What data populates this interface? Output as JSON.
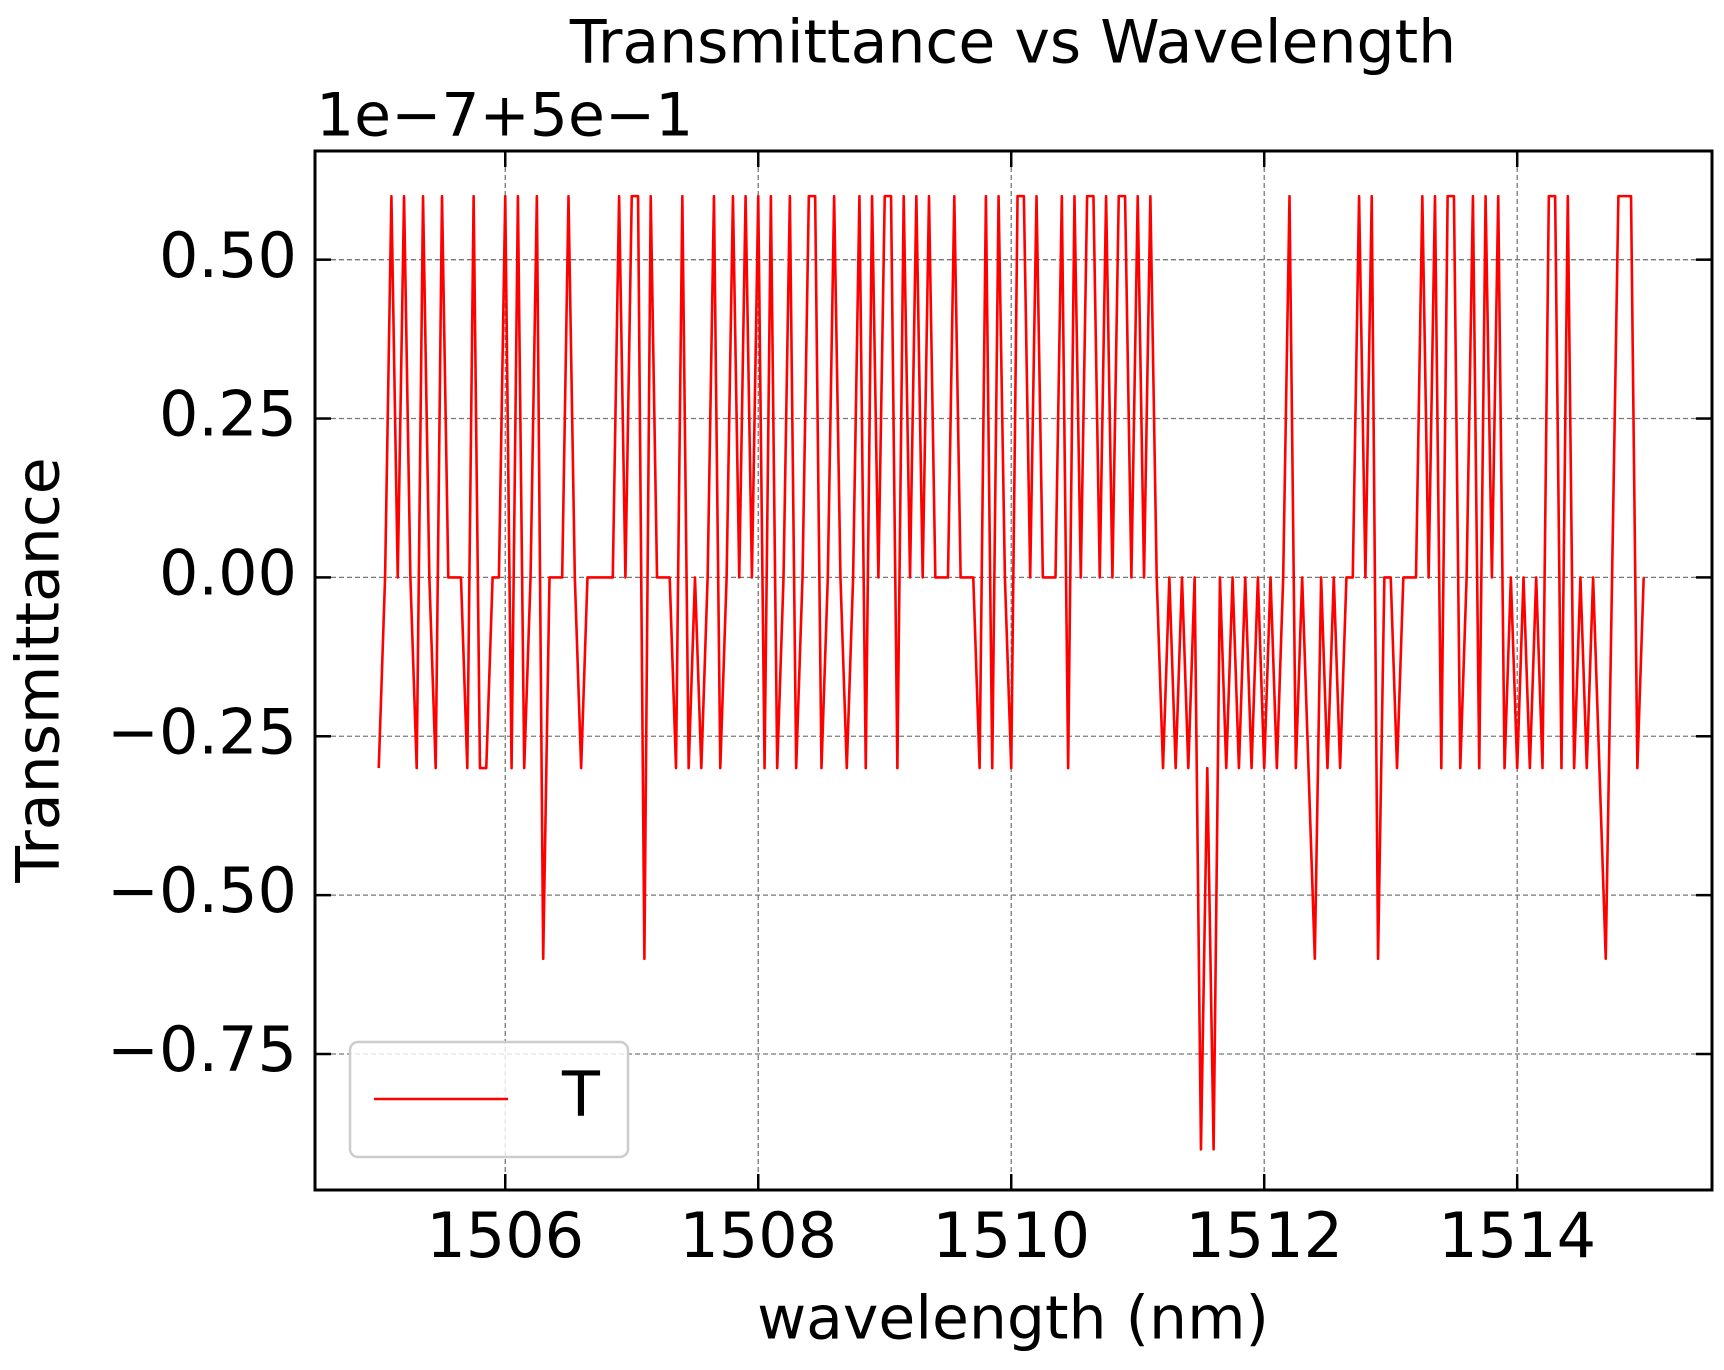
{
  "chart_data": {
    "type": "line",
    "title": "Transmittance vs Wavelength",
    "y_offset_label": "1e−7+5e−1",
    "xlabel": "wavelength (nm)",
    "ylabel": "Transmittance",
    "x": [
      1505,
      1505.05,
      1505.1,
      1505.15,
      1505.2,
      1505.25,
      1505.3,
      1505.35,
      1505.4,
      1505.45,
      1505.5,
      1505.55,
      1505.6,
      1505.65,
      1505.7,
      1505.75,
      1505.8,
      1505.85,
      1505.9,
      1505.95,
      1506,
      1506.05,
      1506.1,
      1506.15,
      1506.2,
      1506.25,
      1506.3,
      1506.35,
      1506.4,
      1506.45,
      1506.5,
      1506.55,
      1506.6,
      1506.65,
      1506.7,
      1506.75,
      1506.8,
      1506.85,
      1506.9,
      1506.95,
      1507,
      1507.05,
      1507.1,
      1507.15,
      1507.2,
      1507.25,
      1507.3,
      1507.35,
      1507.4,
      1507.45,
      1507.5,
      1507.55,
      1507.6,
      1507.65,
      1507.7,
      1507.75,
      1507.8,
      1507.85,
      1507.9,
      1507.95,
      1508,
      1508.05,
      1508.1,
      1508.15,
      1508.2,
      1508.25,
      1508.3,
      1508.35,
      1508.4,
      1508.45,
      1508.5,
      1508.55,
      1508.6,
      1508.65,
      1508.7,
      1508.75,
      1508.8,
      1508.85,
      1508.9,
      1508.95,
      1509,
      1509.05,
      1509.1,
      1509.15,
      1509.2,
      1509.25,
      1509.3,
      1509.35,
      1509.4,
      1509.45,
      1509.5,
      1509.55,
      1509.6,
      1509.65,
      1509.7,
      1509.75,
      1509.8,
      1509.85,
      1509.9,
      1509.95,
      1510,
      1510.05,
      1510.1,
      1510.15,
      1510.2,
      1510.25,
      1510.3,
      1510.35,
      1510.4,
      1510.45,
      1510.5,
      1510.55,
      1510.6,
      1510.65,
      1510.7,
      1510.75,
      1510.8,
      1510.85,
      1510.9,
      1510.95,
      1511,
      1511.05,
      1511.1,
      1511.15,
      1511.2,
      1511.25,
      1511.3,
      1511.35,
      1511.4,
      1511.45,
      1511.5,
      1511.55,
      1511.6,
      1511.65,
      1511.7,
      1511.75,
      1511.8,
      1511.85,
      1511.9,
      1511.95,
      1512,
      1512.05,
      1512.1,
      1512.15,
      1512.2,
      1512.25,
      1512.3,
      1512.35,
      1512.4,
      1512.45,
      1512.5,
      1512.55,
      1512.6,
      1512.65,
      1512.7,
      1512.75,
      1512.8,
      1512.85,
      1512.9,
      1512.95,
      1513,
      1513.05,
      1513.1,
      1513.15,
      1513.2,
      1513.25,
      1513.3,
      1513.35,
      1513.4,
      1513.45,
      1513.5,
      1513.55,
      1513.6,
      1513.65,
      1513.7,
      1513.75,
      1513.8,
      1513.85,
      1513.9,
      1513.95,
      1514,
      1514.05,
      1514.1,
      1514.15,
      1514.2,
      1514.25,
      1514.3,
      1514.35,
      1514.4,
      1514.45,
      1514.5,
      1514.55,
      1514.6,
      1514.65,
      1514.7,
      1514.75,
      1514.8,
      1514.85,
      1514.9,
      1514.95,
      1515
    ],
    "series": [
      {
        "name": "T",
        "color": "#ff0000",
        "values": [
          -0.3,
          0,
          0.6,
          0,
          0.6,
          0,
          -0.3,
          0.6,
          0,
          -0.3,
          0.6,
          0,
          0,
          0,
          -0.3,
          0.6,
          -0.3,
          -0.3,
          0,
          0,
          0.6,
          -0.3,
          0.6,
          -0.3,
          0,
          0.6,
          -0.6,
          0,
          0,
          0,
          0.6,
          0,
          -0.3,
          0,
          0,
          0,
          0,
          0,
          0.6,
          0,
          0.6,
          0.6,
          -0.6,
          0.6,
          0,
          0,
          0,
          -0.3,
          0.6,
          -0.3,
          0,
          -0.3,
          0,
          0.6,
          -0.3,
          0,
          0.6,
          0,
          0.6,
          0,
          0.6,
          -0.3,
          0.6,
          -0.3,
          0,
          0.6,
          -0.3,
          0,
          0.6,
          0.6,
          -0.3,
          0,
          0.6,
          0,
          -0.3,
          0,
          0.6,
          -0.3,
          0.6,
          0,
          0.6,
          0.6,
          -0.3,
          0.6,
          0,
          0.6,
          0,
          0.6,
          0,
          0,
          0,
          0.6,
          0,
          0,
          0,
          -0.3,
          0.6,
          -0.3,
          0.6,
          0,
          -0.3,
          0.6,
          0.6,
          0,
          0.6,
          0,
          0,
          0,
          0.6,
          -0.3,
          0.6,
          0,
          0.6,
          0.6,
          0,
          0.6,
          0,
          0.6,
          0.6,
          0,
          0.6,
          0,
          0.6,
          0,
          -0.3,
          0,
          -0.3,
          0,
          -0.3,
          0,
          -0.9,
          -0.3,
          -0.9,
          0,
          -0.3,
          0,
          -0.3,
          0,
          -0.3,
          0,
          -0.3,
          0,
          -0.3,
          0,
          0.6,
          -0.3,
          0,
          -0.3,
          -0.6,
          0,
          -0.3,
          0,
          -0.3,
          0,
          0,
          0.6,
          0,
          0.6,
          -0.6,
          0,
          0,
          -0.3,
          0,
          0,
          0,
          0.6,
          0,
          0.6,
          -0.3,
          0.6,
          0.6,
          -0.3,
          0,
          0.6,
          -0.3,
          0.6,
          0,
          0.6,
          -0.3,
          0,
          -0.3,
          0,
          -0.3,
          0,
          -0.3,
          0.6,
          0.6,
          -0.3,
          0.6,
          -0.3,
          0,
          -0.3,
          0,
          -0.3,
          -0.6,
          0,
          0.6,
          0.6,
          0.6,
          -0.3,
          0
        ]
      }
    ],
    "xlim": [
      1504.496,
      1515.54
    ],
    "ylim": [
      -0.964,
      0.671
    ],
    "xticks": [
      1506,
      1508,
      1510,
      1512,
      1514
    ],
    "yticks": [
      {
        "value": -0.75,
        "label": "−0.75"
      },
      {
        "value": -0.5,
        "label": "−0.50"
      },
      {
        "value": -0.25,
        "label": "−0.25"
      },
      {
        "value": 0,
        "label": "0.00"
      },
      {
        "value": 0.25,
        "label": "0.25"
      },
      {
        "value": 0.5,
        "label": "0.50"
      }
    ],
    "grid": true,
    "legend": "lower left"
  }
}
